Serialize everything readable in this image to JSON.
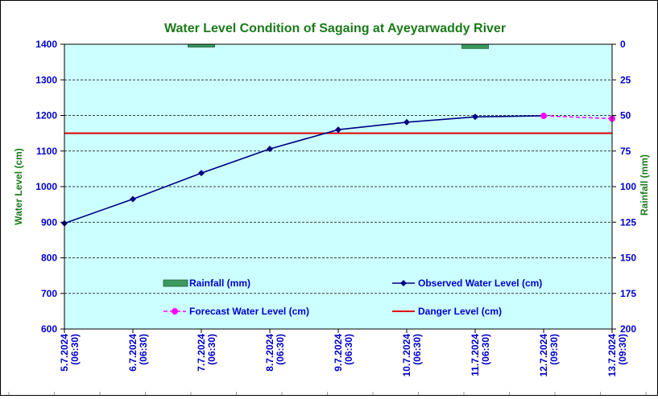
{
  "chart_data": {
    "type": "line",
    "title": "Water Level Condition of Sagaing at Ayeyarwaddy River",
    "ylabel": "Water Level (cm)",
    "y2label": "Rainfall (mm)",
    "ylim": [
      600,
      1400
    ],
    "y2lim": [
      0,
      200
    ],
    "y2_inverted": true,
    "yticks": [
      "1400",
      "1300",
      "1200",
      "1100",
      "1000",
      "900",
      "800",
      "700",
      "600"
    ],
    "y2ticks": [
      "0",
      "25",
      "50",
      "75",
      "100",
      "125",
      "150",
      "175",
      "200"
    ],
    "categories": [
      [
        "5.7.2024",
        "(06:30)"
      ],
      [
        "6.7.2024",
        "(06:30)"
      ],
      [
        "7.7.2024",
        "(06:30)"
      ],
      [
        "8.7.2024",
        "(06:30)"
      ],
      [
        "9.7.2024",
        "(06:30)"
      ],
      [
        "10.7.2024",
        "(06:30)"
      ],
      [
        "11.7.2024",
        "(06:30)"
      ],
      [
        "12.7.2024",
        "(09:30)"
      ],
      [
        "13.7.2024",
        "(09:30)"
      ]
    ],
    "grid": true,
    "legend": [
      {
        "name": "Rainfall (mm)",
        "kind": "bar"
      },
      {
        "name": "Observed Water Level (cm)",
        "kind": "line-marker"
      },
      {
        "name": "Forecast Water Level (cm)",
        "kind": "dashed"
      },
      {
        "name": "Danger Level (cm)",
        "kind": "line"
      }
    ],
    "series": [
      {
        "name": "Rainfall (mm)",
        "type": "bar",
        "axis": "right",
        "color": "#3c9a5f",
        "values": [
          null,
          null,
          2,
          null,
          null,
          null,
          3,
          null,
          null
        ]
      },
      {
        "name": "Observed Water Level (cm)",
        "type": "line",
        "color": "#000080",
        "values": [
          897,
          965,
          1038,
          1106,
          1160,
          1181,
          1196,
          1199,
          null
        ]
      },
      {
        "name": "Forecast Water Level (cm)",
        "type": "dashed-line",
        "color": "#ff00ff",
        "values": [
          null,
          null,
          null,
          null,
          null,
          null,
          null,
          1199,
          1191
        ]
      },
      {
        "name": "Danger Level (cm)",
        "type": "hline",
        "color": "#e00000",
        "value": 1150
      }
    ],
    "colors": {
      "title": "#1a7a1a",
      "axis_text": "#0000cc",
      "y2_text": "#1a7a1a",
      "plot_bg": "#ccffff"
    }
  }
}
